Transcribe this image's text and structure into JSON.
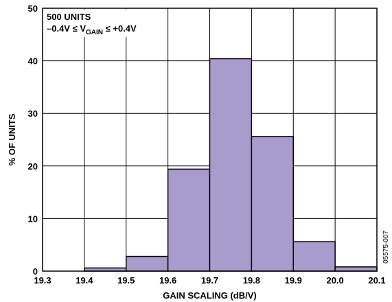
{
  "chart_data": {
    "type": "bar",
    "bins": [
      {
        "from": 19.3,
        "to": 19.4,
        "value": 0
      },
      {
        "from": 19.4,
        "to": 19.5,
        "value": 0.6
      },
      {
        "from": 19.5,
        "to": 19.6,
        "value": 2.8
      },
      {
        "from": 19.6,
        "to": 19.7,
        "value": 19.4
      },
      {
        "from": 19.7,
        "to": 19.8,
        "value": 40.4
      },
      {
        "from": 19.8,
        "to": 19.9,
        "value": 25.6
      },
      {
        "from": 19.9,
        "to": 20.0,
        "value": 5.6
      },
      {
        "from": 20.0,
        "to": 20.1,
        "value": 0.8
      }
    ],
    "x_ticks": [
      "19.3",
      "19.4",
      "19.5",
      "19.6",
      "19.7",
      "19.8",
      "19.9",
      "20.0",
      "20.1"
    ],
    "y_ticks": [
      "0",
      "10",
      "20",
      "30",
      "40",
      "50"
    ],
    "xlim": [
      19.3,
      20.1
    ],
    "ylim": [
      0,
      50
    ],
    "xlabel": "GAIN SCALING (dB/V)",
    "ylabel": "% OF UNITS",
    "grid": true,
    "bar_color": "#a79ccc",
    "annotation": {
      "line1": "500 UNITS",
      "line2_prefix": "–0.4V ≤ V",
      "line2_sub": "GAIN",
      "line2_suffix": " ≤ +0.4V"
    },
    "figure_id": "05575-007"
  }
}
